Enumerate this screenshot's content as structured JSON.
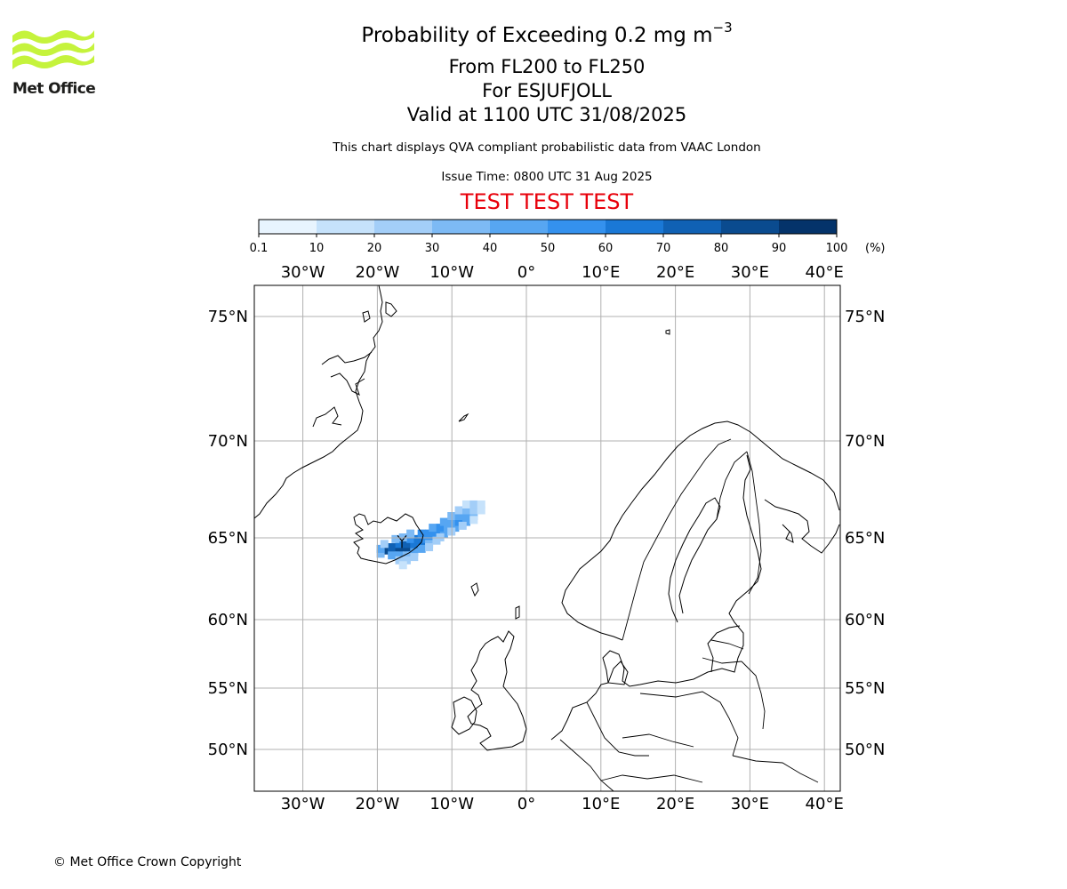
{
  "logo": {
    "text": "Met Office",
    "wave_color": "#c5f33c"
  },
  "title": {
    "main": "Probability of Exceeding 0.2 mg m",
    "main_superscript": "−3",
    "levels": "From FL200 to FL250",
    "volcano": "For ESJUFJOLL",
    "valid": "Valid at 1100 UTC 31/08/2025",
    "description": "This chart displays QVA compliant probabilistic data from VAAC London",
    "issue": "Issue Time: 0800 UTC 31 Aug 2025",
    "test_banner": "TEST TEST TEST",
    "test_color": "#e8000b"
  },
  "colorbar": {
    "ticks": [
      "0.1",
      "10",
      "20",
      "30",
      "40",
      "50",
      "60",
      "70",
      "80",
      "90",
      "100"
    ],
    "unit": "(%)",
    "colors": [
      "#e8f4fe",
      "#c6e2fb",
      "#a3cef8",
      "#7dbaf5",
      "#57a6f2",
      "#3491ee",
      "#1a78d6",
      "#1061b4",
      "#0a4b8f",
      "#04336a",
      "#021f45"
    ]
  },
  "map": {
    "lon_ticks": [
      "30°W",
      "20°W",
      "10°W",
      "0°",
      "10°E",
      "20°E",
      "30°E",
      "40°E"
    ],
    "lat_ticks": [
      "75°N",
      "70°N",
      "65°N",
      "60°N",
      "55°N",
      "50°N"
    ],
    "gridline_color": "#b0b0b0",
    "plume": {
      "source_volcano": "ESJUFJOLL",
      "orientation": "south-west to north-east",
      "cells": [
        [
          64.2,
          -18.5,
          80
        ],
        [
          64.2,
          -17.5,
          85
        ],
        [
          64.2,
          -16.5,
          90
        ],
        [
          64.2,
          -15.5,
          75
        ],
        [
          64.4,
          -18.0,
          75
        ],
        [
          64.4,
          -17.0,
          85
        ],
        [
          64.4,
          -16.0,
          80
        ],
        [
          64.4,
          -15.0,
          70
        ],
        [
          64.6,
          -17.0,
          65
        ],
        [
          64.6,
          -16.0,
          70
        ],
        [
          64.6,
          -15.0,
          65
        ],
        [
          64.6,
          -14.0,
          60
        ],
        [
          64.9,
          -15.5,
          55
        ],
        [
          64.9,
          -14.5,
          60
        ],
        [
          64.9,
          -13.5,
          55
        ],
        [
          64.9,
          -12.5,
          50
        ],
        [
          65.2,
          -14.0,
          50
        ],
        [
          65.2,
          -13.0,
          55
        ],
        [
          65.2,
          -12.0,
          50
        ],
        [
          65.2,
          -11.0,
          45
        ],
        [
          65.5,
          -12.5,
          45
        ],
        [
          65.5,
          -11.5,
          50
        ],
        [
          65.5,
          -10.5,
          45
        ],
        [
          65.5,
          -9.5,
          40
        ],
        [
          65.8,
          -11.0,
          40
        ],
        [
          65.8,
          -10.0,
          45
        ],
        [
          65.8,
          -9.0,
          50
        ],
        [
          65.8,
          -8.0,
          40
        ],
        [
          66.1,
          -10.0,
          35
        ],
        [
          66.1,
          -9.0,
          45
        ],
        [
          66.1,
          -8.0,
          40
        ],
        [
          66.1,
          -7.0,
          30
        ],
        [
          66.4,
          -9.0,
          25
        ],
        [
          66.4,
          -8.0,
          30
        ],
        [
          66.4,
          -7.0,
          25
        ],
        [
          66.4,
          -6.0,
          15
        ],
        [
          66.7,
          -8.0,
          15
        ],
        [
          66.7,
          -7.0,
          20
        ],
        [
          66.7,
          -6.0,
          10
        ],
        [
          63.9,
          -18.0,
          40
        ],
        [
          63.9,
          -17.0,
          45
        ],
        [
          63.9,
          -16.0,
          35
        ],
        [
          63.6,
          -17.0,
          20
        ],
        [
          63.6,
          -16.0,
          25
        ],
        [
          63.3,
          -16.5,
          10
        ],
        [
          64.0,
          -19.5,
          30
        ],
        [
          64.3,
          -19.5,
          40
        ],
        [
          64.6,
          -19.0,
          25
        ],
        [
          64.9,
          -17.5,
          30
        ],
        [
          65.0,
          -16.5,
          35
        ],
        [
          65.2,
          -15.5,
          30
        ],
        [
          64.6,
          -13.0,
          35
        ],
        [
          64.3,
          -14.0,
          40
        ],
        [
          64.1,
          -15.0,
          45
        ],
        [
          65.0,
          -11.5,
          25
        ],
        [
          65.3,
          -10.0,
          25
        ],
        [
          65.6,
          -8.5,
          20
        ],
        [
          65.9,
          -7.0,
          15
        ],
        [
          64.8,
          -12.0,
          20
        ],
        [
          64.4,
          -13.0,
          25
        ],
        [
          63.8,
          -15.0,
          20
        ]
      ]
    }
  },
  "copyright": "© Met Office Crown Copyright"
}
